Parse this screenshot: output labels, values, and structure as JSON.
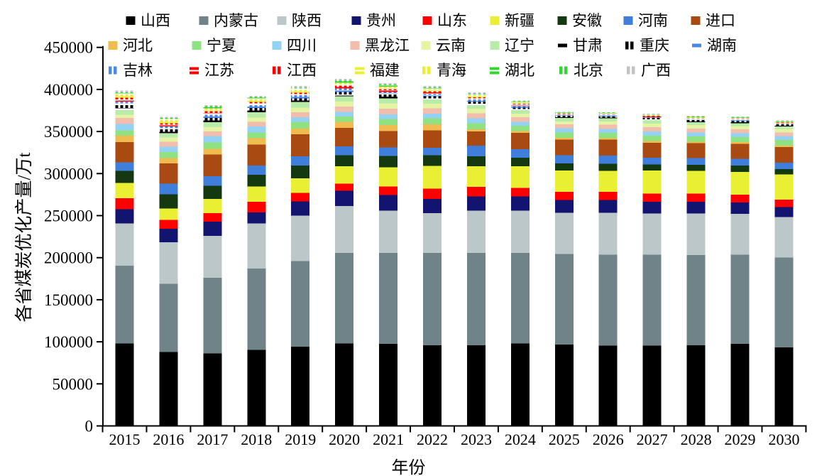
{
  "chart_data": {
    "type": "bar",
    "subtype": "stacked-vertical",
    "title": "",
    "xlabel": "年份",
    "ylabel": "各省煤炭优化产量/万t",
    "ylim": [
      0,
      450000
    ],
    "ytick_step": 50000,
    "yticks": [
      "0",
      "50000",
      "100000",
      "150000",
      "200000",
      "250000",
      "300000",
      "350000",
      "400000",
      "450000"
    ],
    "grid": "off",
    "legend_position": "top",
    "categories": [
      "2015",
      "2016",
      "2017",
      "2018",
      "2019",
      "2020",
      "2021",
      "2022",
      "2023",
      "2024",
      "2025",
      "2026",
      "2027",
      "2028",
      "2029",
      "2030"
    ],
    "series": [
      {
        "name": "山西",
        "color": "#000000",
        "pattern": "solid",
        "marker": "square",
        "values": [
          98000,
          88000,
          86000,
          90500,
          94000,
          98000,
          97500,
          96000,
          96000,
          98000,
          96500,
          95500,
          95500,
          96000,
          97500,
          93500
        ]
      },
      {
        "name": "内蒙古",
        "color": "#6f8389",
        "pattern": "solid",
        "marker": "square",
        "values": [
          92500,
          81000,
          90000,
          96500,
          102000,
          107500,
          108000,
          109500,
          109500,
          107500,
          108000,
          108000,
          108000,
          107000,
          106000,
          106500
        ]
      },
      {
        "name": "陕西",
        "color": "#bcc7c9",
        "pattern": "solid",
        "marker": "square",
        "values": [
          50000,
          49500,
          50000,
          53500,
          54000,
          56000,
          50500,
          47500,
          50500,
          50500,
          49000,
          50000,
          49000,
          49500,
          48500,
          48500
        ]
      },
      {
        "name": "贵州",
        "color": "#131370",
        "pattern": "solid",
        "marker": "square",
        "values": [
          17000,
          16000,
          17000,
          13500,
          17000,
          18000,
          18500,
          17000,
          17000,
          17000,
          15000,
          15000,
          14000,
          14000,
          13500,
          11500
        ]
      },
      {
        "name": "山东",
        "color": "#fe0000",
        "pattern": "solid",
        "marker": "square",
        "values": [
          13000,
          10500,
          10000,
          12500,
          10000,
          8500,
          10000,
          12000,
          11000,
          10000,
          10000,
          10000,
          9500,
          9500,
          9500,
          9000
        ]
      },
      {
        "name": "新疆",
        "color": "#e9ef33",
        "pattern": "solid",
        "marker": "square",
        "values": [
          18500,
          13500,
          17000,
          18000,
          17500,
          20500,
          23000,
          27000,
          24500,
          25500,
          25000,
          24500,
          27500,
          27000,
          27000,
          30000
        ]
      },
      {
        "name": "安徽",
        "color": "#14380f",
        "pattern": "solid",
        "marker": "square",
        "values": [
          14000,
          17000,
          15500,
          14000,
          15000,
          13500,
          13500,
          13000,
          12000,
          10500,
          8500,
          8500,
          7500,
          7500,
          7500,
          6500
        ]
      },
      {
        "name": "河南",
        "color": "#3f7fdb",
        "pattern": "solid",
        "marker": "square",
        "values": [
          10500,
          12500,
          11500,
          11000,
          11000,
          10500,
          10000,
          8500,
          12500,
          10000,
          10000,
          10000,
          8000,
          8000,
          8000,
          7500
        ]
      },
      {
        "name": "进口",
        "color": "#a84a12",
        "pattern": "solid",
        "marker": "square",
        "values": [
          24000,
          24000,
          25500,
          25000,
          26000,
          22000,
          19500,
          21000,
          17000,
          19500,
          18500,
          19000,
          17500,
          17500,
          18000,
          18500
        ]
      },
      {
        "name": "河北",
        "color": "#f0bc50",
        "pattern": "solid",
        "marker": "square",
        "values": [
          7500,
          6500,
          7000,
          7500,
          7000,
          7000,
          7000,
          7000,
          2500,
          2000,
          2000,
          1500,
          2000,
          2000,
          2000,
          1500
        ]
      },
      {
        "name": "宁夏",
        "color": "#90e181",
        "pattern": "solid",
        "marker": "square",
        "values": [
          6500,
          7000,
          7500,
          7000,
          8000,
          6500,
          7500,
          7000,
          7500,
          6500,
          6500,
          6500,
          6500,
          6000,
          6000,
          7000
        ]
      },
      {
        "name": "四川",
        "color": "#94d2f3",
        "pattern": "solid",
        "marker": "square",
        "values": [
          7500,
          6500,
          7500,
          7000,
          5500,
          5500,
          5500,
          5500,
          5500,
          4500,
          5000,
          4500,
          5000,
          5000,
          4500,
          4500
        ]
      },
      {
        "name": "黑龙江",
        "color": "#f2bdad",
        "pattern": "solid",
        "marker": "square",
        "values": [
          7000,
          6000,
          5500,
          5500,
          6000,
          6000,
          6500,
          6500,
          6000,
          5500,
          4500,
          5000,
          5000,
          4500,
          4500,
          4500
        ]
      },
      {
        "name": "云南",
        "color": "#e4f3a4",
        "pattern": "solid",
        "marker": "square",
        "values": [
          4000,
          5000,
          5000,
          5000,
          5500,
          6000,
          6500,
          5500,
          5500,
          4000,
          3500,
          4000,
          4500,
          4000,
          4000,
          4000
        ]
      },
      {
        "name": "辽宁",
        "color": "#b9eba9",
        "pattern": "solid",
        "marker": "square",
        "values": [
          5500,
          4500,
          6000,
          6500,
          6500,
          6500,
          6000,
          5000,
          4500,
          4500,
          4000,
          3500,
          4000,
          3500,
          3500,
          3000
        ]
      },
      {
        "name": "甘肃",
        "color": "#000000",
        "pattern": "hdash",
        "marker": "dash",
        "values": [
          2500,
          2000,
          2000,
          2000,
          2000,
          2000,
          2000,
          1500,
          1500,
          1000,
          1000,
          1000,
          1000,
          1000,
          1000,
          1000
        ]
      },
      {
        "name": "重庆",
        "color": "#000000",
        "pattern": "vbar",
        "marker": "vbars",
        "values": [
          3500,
          3000,
          3000,
          3000,
          2500,
          3000,
          2500,
          2500,
          2500,
          2000,
          1500,
          1500,
          1500,
          1500,
          1500,
          1500
        ]
      },
      {
        "name": "湖南",
        "color": "#4a87e8",
        "pattern": "hdash",
        "marker": "dash",
        "values": [
          2000,
          1500,
          2000,
          1500,
          1500,
          2000,
          1500,
          1500,
          1000,
          1000,
          500,
          500,
          500,
          500,
          500,
          500
        ]
      },
      {
        "name": "吉林",
        "color": "#4a87e8",
        "pattern": "vbar",
        "marker": "vbars",
        "values": [
          2000,
          2000,
          2000,
          2000,
          2000,
          2000,
          1500,
          1500,
          1500,
          1000,
          500,
          500,
          500,
          500,
          500,
          500
        ]
      },
      {
        "name": "江苏",
        "color": "#fe0000",
        "pattern": "hdash",
        "marker": "dash2",
        "values": [
          2500,
          2000,
          2000,
          2000,
          1500,
          2000,
          2000,
          1500,
          1500,
          1500,
          1000,
          1000,
          1000,
          1000,
          1000,
          500
        ]
      },
      {
        "name": "江西",
        "color": "#fe0000",
        "pattern": "vbar",
        "marker": "vbars",
        "values": [
          2000,
          2000,
          2000,
          1500,
          1500,
          1500,
          1500,
          1500,
          1000,
          1000,
          500,
          500,
          500,
          500,
          500,
          500
        ]
      },
      {
        "name": "福建",
        "color": "#e9ef33",
        "pattern": "hdash",
        "marker": "dash2",
        "values": [
          2000,
          1500,
          1500,
          1500,
          1500,
          1500,
          1500,
          1000,
          1000,
          1000,
          500,
          500,
          500,
          500,
          500,
          500
        ]
      },
      {
        "name": "青海",
        "color": "#e9ef33",
        "pattern": "vbar",
        "marker": "vbars",
        "values": [
          2000,
          2000,
          2000,
          2000,
          2000,
          2000,
          1500,
          1500,
          1500,
          1000,
          500,
          500,
          500,
          500,
          500,
          500
        ]
      },
      {
        "name": "湖北",
        "color": "#35d435",
        "pattern": "hdash",
        "marker": "dash2",
        "values": [
          1500,
          1500,
          1500,
          1500,
          1500,
          1500,
          1500,
          1000,
          1000,
          500,
          500,
          500,
          500,
          500,
          500,
          500
        ]
      },
      {
        "name": "北京",
        "color": "#35d435",
        "pattern": "vbar",
        "marker": "vbars",
        "values": [
          1000,
          1000,
          1000,
          1000,
          1000,
          1000,
          1000,
          1000,
          1000,
          500,
          500,
          500,
          500,
          500,
          500,
          500
        ]
      },
      {
        "name": "广西",
        "color": "#c2c2c2",
        "pattern": "vbar",
        "marker": "vbars",
        "values": [
          2000,
          1500,
          1500,
          1500,
          2000,
          2000,
          1500,
          1500,
          1500,
          1000,
          500,
          500,
          500,
          500,
          1000,
          500
        ]
      }
    ]
  }
}
